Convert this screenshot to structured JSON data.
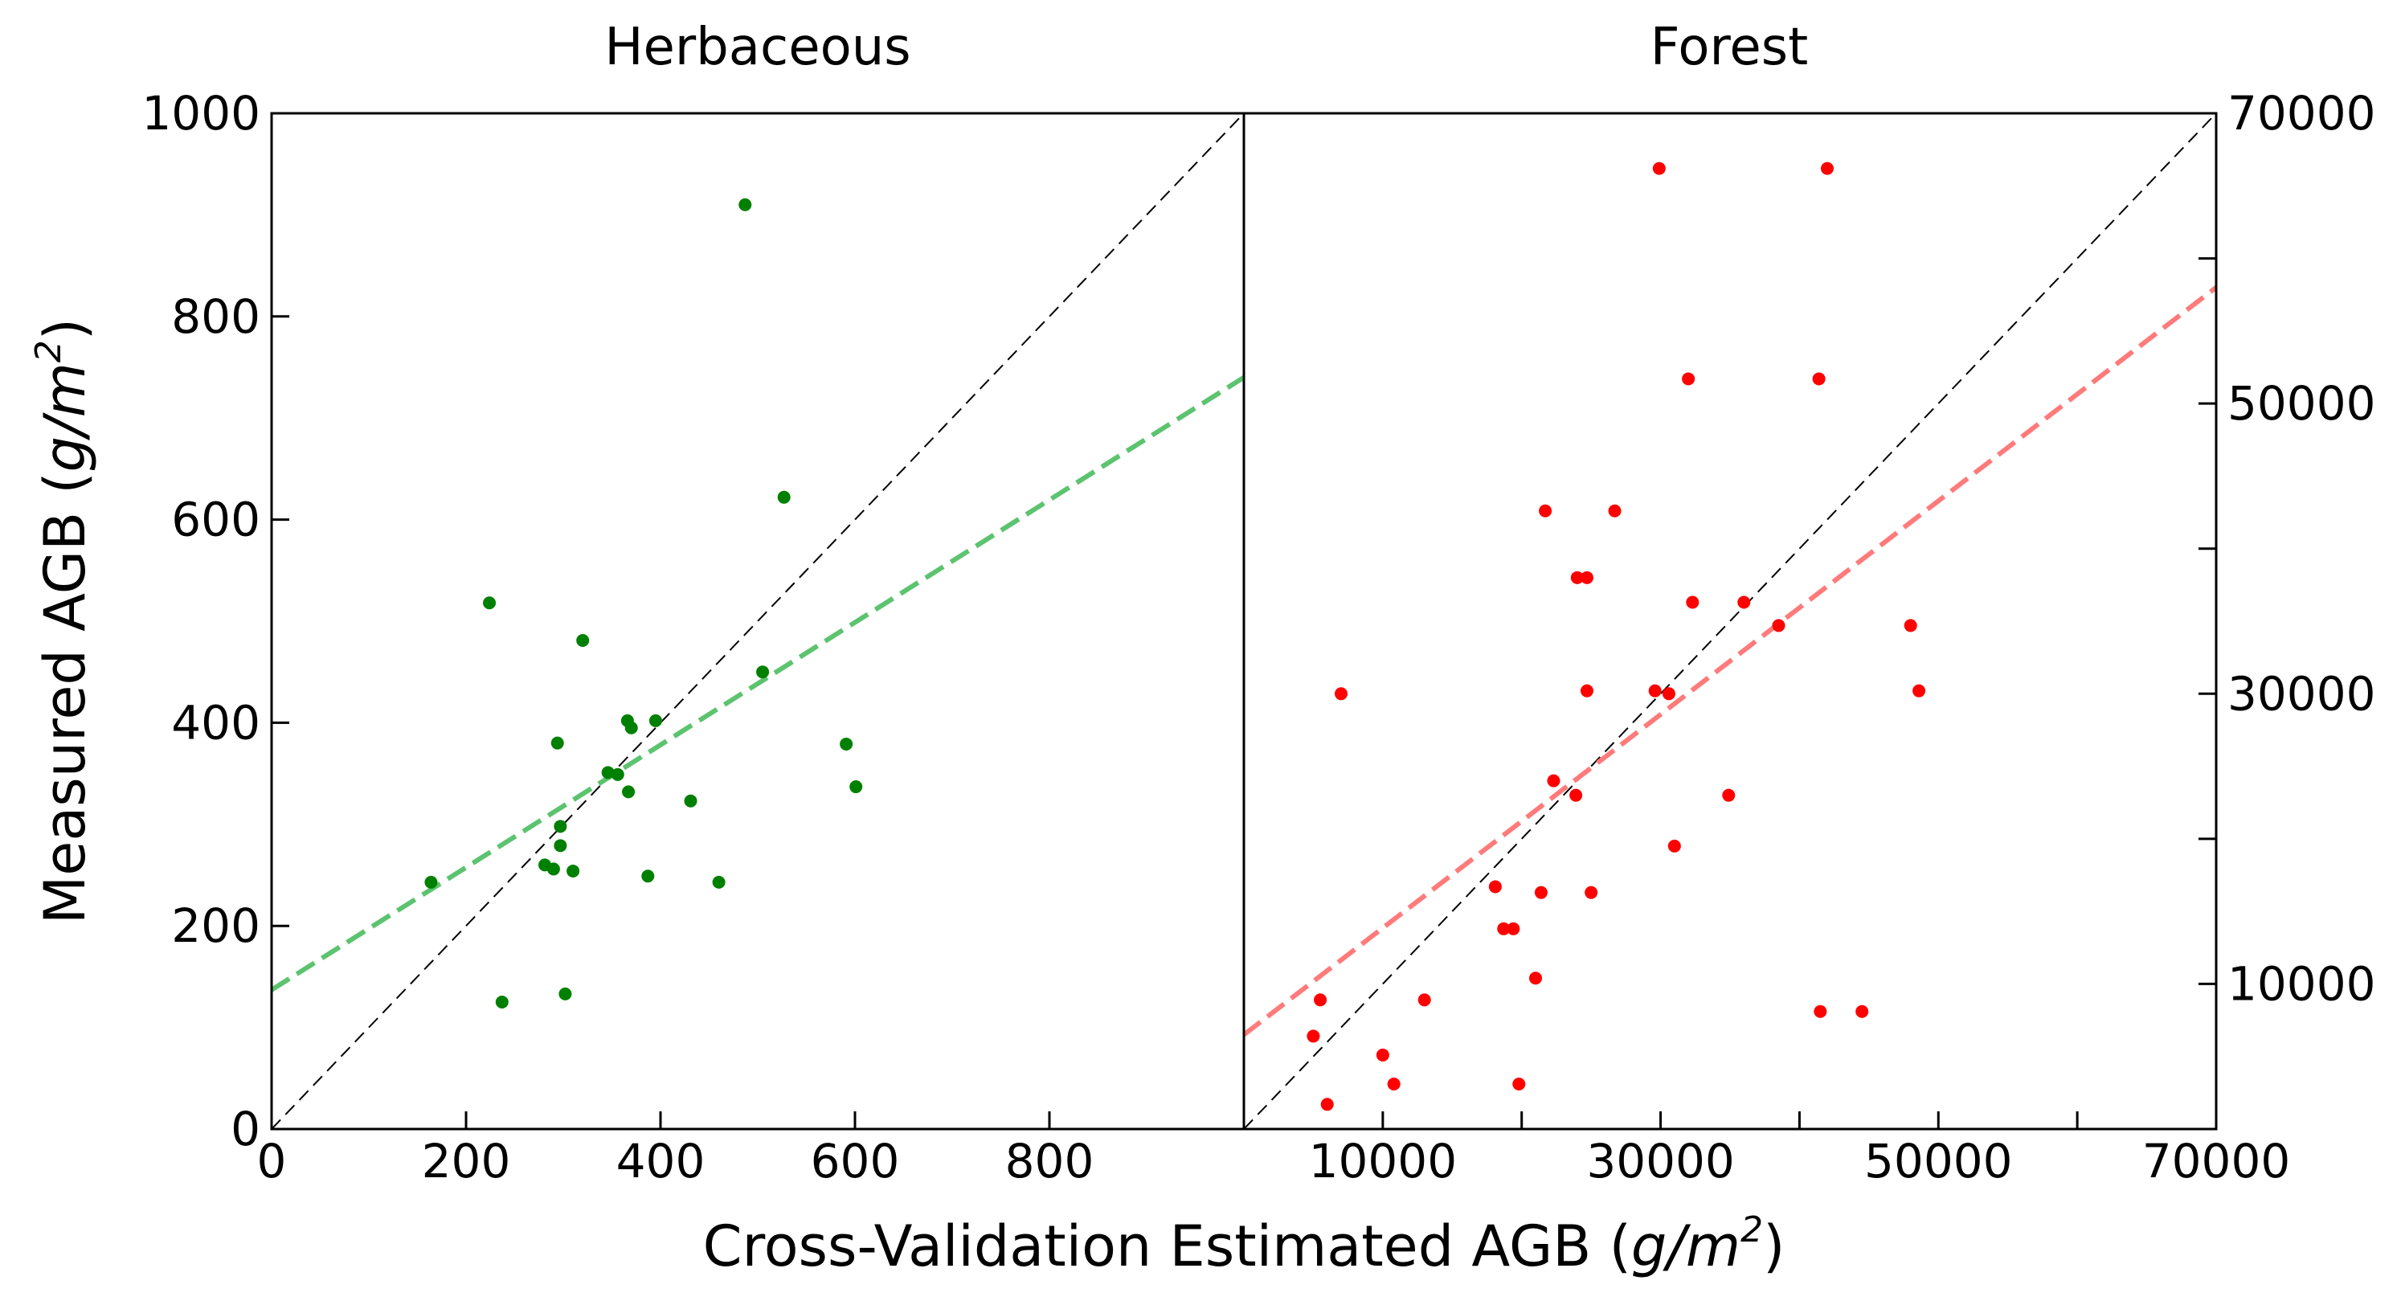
{
  "figure": {
    "xlabel_main": "Cross-Validation Estimated AGB (",
    "xlabel_unit": "g/m",
    "xlabel_sup": "2",
    "xlabel_end": ")",
    "ylabel_main": "Measured AGB (",
    "ylabel_unit": "g/m",
    "ylabel_sup": "2",
    "ylabel_end": ")"
  },
  "chart_data": [
    {
      "type": "scatter",
      "title": "Herbaceous",
      "xlim": [
        0,
        1000
      ],
      "ylim": [
        0,
        1000
      ],
      "xticks": [
        0,
        200,
        400,
        600,
        800
      ],
      "xtick_labels": [
        "0",
        "200",
        "400",
        "600",
        "800"
      ],
      "yticks": [
        0,
        200,
        400,
        600,
        800,
        1000
      ],
      "ytick_labels": [
        "0",
        "200",
        "400",
        "600",
        "800",
        "1000"
      ],
      "point_color": "#008000",
      "fit_color": "#5cc36f",
      "fit_line": {
        "x": [
          0,
          1000
        ],
        "y": [
          137,
          740
        ]
      },
      "one_to_one": true,
      "points": [
        {
          "x": 487,
          "y": 910
        },
        {
          "x": 527,
          "y": 622
        },
        {
          "x": 224,
          "y": 518
        },
        {
          "x": 320,
          "y": 481
        },
        {
          "x": 505,
          "y": 450
        },
        {
          "x": 395,
          "y": 402
        },
        {
          "x": 366,
          "y": 402
        },
        {
          "x": 370,
          "y": 395
        },
        {
          "x": 294,
          "y": 380
        },
        {
          "x": 591,
          "y": 379
        },
        {
          "x": 346,
          "y": 351
        },
        {
          "x": 356,
          "y": 349
        },
        {
          "x": 601,
          "y": 337
        },
        {
          "x": 367,
          "y": 332
        },
        {
          "x": 431,
          "y": 323
        },
        {
          "x": 297,
          "y": 298
        },
        {
          "x": 297,
          "y": 279
        },
        {
          "x": 281,
          "y": 260
        },
        {
          "x": 290,
          "y": 256
        },
        {
          "x": 310,
          "y": 254
        },
        {
          "x": 387,
          "y": 249
        },
        {
          "x": 164,
          "y": 243
        },
        {
          "x": 460,
          "y": 243
        },
        {
          "x": 302,
          "y": 133
        },
        {
          "x": 237,
          "y": 125
        }
      ]
    },
    {
      "type": "scatter",
      "title": "Forest",
      "xlim": [
        0,
        70000
      ],
      "ylim": [
        0,
        70000
      ],
      "xticks": [
        10000,
        30000,
        50000,
        70000
      ],
      "xtick_labels": [
        "10000",
        "30000",
        "50000",
        "70000"
      ],
      "minor_xticks": [
        20000,
        40000,
        60000
      ],
      "yticks": [
        10000,
        30000,
        50000,
        70000
      ],
      "ytick_labels": [
        "10000",
        "30000",
        "50000",
        "70000"
      ],
      "minor_yticks": [
        20000,
        40000,
        60000
      ],
      "point_color": "#ff0000",
      "fit_color": "#ff7b7b",
      "fit_line": {
        "x": [
          0,
          70000
        ],
        "y": [
          6500,
          58000
        ]
      },
      "one_to_one": true,
      "points": [
        {
          "x": 29900,
          "y": 66200
        },
        {
          "x": 42000,
          "y": 66200
        },
        {
          "x": 32000,
          "y": 51700
        },
        {
          "x": 41400,
          "y": 51700
        },
        {
          "x": 21700,
          "y": 42600
        },
        {
          "x": 26700,
          "y": 42600
        },
        {
          "x": 24000,
          "y": 38000
        },
        {
          "x": 24700,
          "y": 38000
        },
        {
          "x": 32300,
          "y": 36300
        },
        {
          "x": 36000,
          "y": 36300
        },
        {
          "x": 38500,
          "y": 34700
        },
        {
          "x": 48000,
          "y": 34700
        },
        {
          "x": 7000,
          "y": 30000
        },
        {
          "x": 24700,
          "y": 30200
        },
        {
          "x": 29600,
          "y": 30200
        },
        {
          "x": 30600,
          "y": 30000
        },
        {
          "x": 48600,
          "y": 30200
        },
        {
          "x": 22300,
          "y": 24000
        },
        {
          "x": 23900,
          "y": 23000
        },
        {
          "x": 34900,
          "y": 23000
        },
        {
          "x": 31000,
          "y": 19500
        },
        {
          "x": 18100,
          "y": 16700
        },
        {
          "x": 21400,
          "y": 16300
        },
        {
          "x": 25000,
          "y": 16300
        },
        {
          "x": 18700,
          "y": 13800
        },
        {
          "x": 19400,
          "y": 13800
        },
        {
          "x": 21000,
          "y": 10400
        },
        {
          "x": 5500,
          "y": 8900
        },
        {
          "x": 13000,
          "y": 8900
        },
        {
          "x": 41500,
          "y": 8100
        },
        {
          "x": 44500,
          "y": 8100
        },
        {
          "x": 5000,
          "y": 6400
        },
        {
          "x": 10000,
          "y": 5100
        },
        {
          "x": 10800,
          "y": 3100
        },
        {
          "x": 19800,
          "y": 3100
        },
        {
          "x": 6000,
          "y": 1700
        }
      ]
    }
  ]
}
